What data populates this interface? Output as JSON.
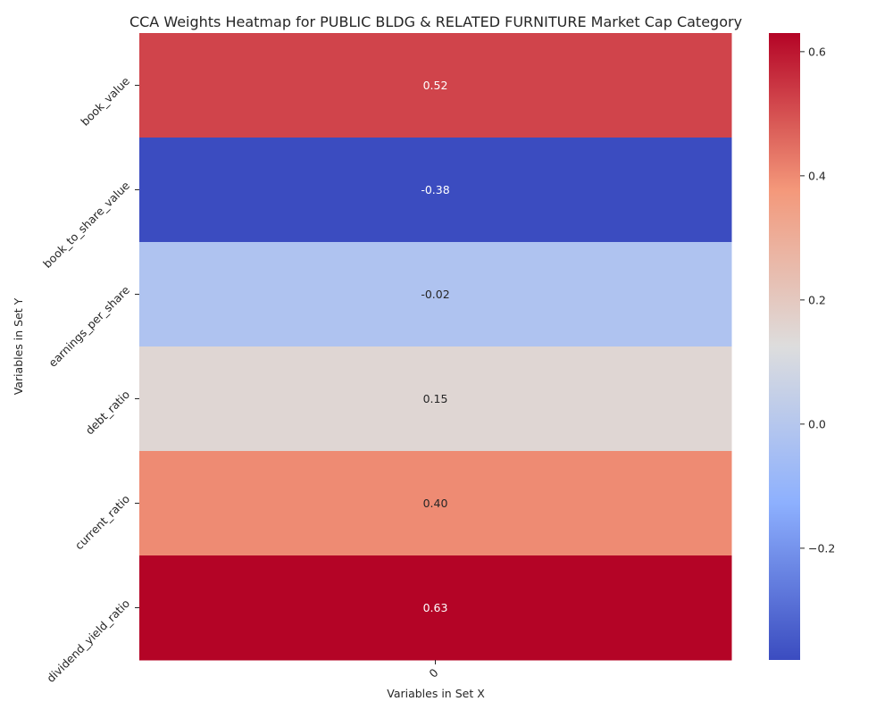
{
  "chart_data": {
    "type": "heatmap",
    "title": "CCA Weights Heatmap for PUBLIC BLDG & RELATED FURNITURE Market Cap Category",
    "xlabel": "Variables in Set X",
    "ylabel": "Variables in Set Y",
    "x_categories": [
      "0"
    ],
    "y_categories": [
      "book_value",
      "book_to_share_value",
      "earnings_per_share",
      "debt_ratio",
      "current_ratio",
      "dividend_yield_ratio"
    ],
    "values": [
      [
        0.52
      ],
      [
        -0.38
      ],
      [
        -0.02
      ],
      [
        0.15
      ],
      [
        0.4
      ],
      [
        0.63
      ]
    ],
    "value_labels": [
      "0.52",
      "-0.38",
      "-0.02",
      "0.15",
      "0.40",
      "0.63"
    ],
    "colormap": "coolwarm",
    "color_range": [
      -0.38,
      0.63
    ],
    "colorbar_ticks": [
      -0.2,
      0.0,
      0.2,
      0.4,
      0.6
    ],
    "colorbar_tick_labels": [
      "−0.2",
      "0.0",
      "0.2",
      "0.4",
      "0.6"
    ],
    "grid": false,
    "legend": "colorbar-right"
  }
}
